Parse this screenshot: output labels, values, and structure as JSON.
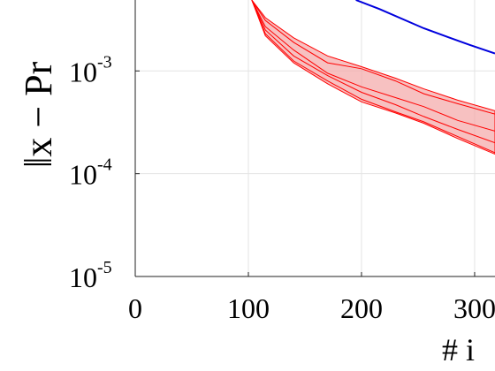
{
  "chart_data": {
    "type": "line",
    "xlabel": "# i",
    "ylabel": "‖x − Pr",
    "log_y": true,
    "grid": true,
    "xlim": [
      0,
      318
    ],
    "ylim": [
      1e-05,
      0.0049
    ],
    "xticks": [
      0,
      100,
      200,
      300
    ],
    "yticks": [
      {
        "value": 1e-05,
        "label": "10",
        "sup": "-5"
      },
      {
        "value": 0.0001,
        "label": "10",
        "sup": "-4"
      },
      {
        "value": 0.001,
        "label": "10",
        "sup": "-3"
      }
    ],
    "x": [
      103,
      115,
      140,
      170,
      200,
      230,
      255,
      285,
      318
    ],
    "band": {
      "color": "#f4a6a6",
      "upper": [
        0.0049,
        0.0033,
        0.0021,
        0.0014,
        0.0011,
        0.00085,
        0.00067,
        0.00052,
        0.00041
      ],
      "lower": [
        0.0049,
        0.0022,
        0.0012,
        0.00075,
        0.0005,
        0.00039,
        0.00031,
        0.00022,
        0.000155
      ]
    },
    "series": [
      {
        "color": "#ff0000",
        "values": [
          0.0049,
          0.0031,
          0.0019,
          0.0012,
          0.00105,
          0.0008,
          0.0006,
          0.00048,
          0.00038
        ]
      },
      {
        "color": "#ff0000",
        "values": [
          0.0049,
          0.0027,
          0.0016,
          0.00095,
          0.0007,
          0.00055,
          0.00045,
          0.00033,
          0.00026
        ]
      },
      {
        "color": "#ff0000",
        "values": [
          0.0049,
          0.0025,
          0.0014,
          0.0009,
          0.00062,
          0.00047,
          0.00036,
          0.00027,
          0.0002
        ]
      },
      {
        "color": "#ff0000",
        "values": [
          0.0049,
          0.0023,
          0.00125,
          0.0008,
          0.00053,
          0.0004,
          0.00032,
          0.00023,
          0.00016
        ]
      },
      {
        "color": "#0000dd",
        "x": [
          195,
          216,
          255,
          295,
          318
        ],
        "values": [
          0.0049,
          0.004,
          0.0026,
          0.0018,
          0.00148
        ]
      }
    ]
  }
}
